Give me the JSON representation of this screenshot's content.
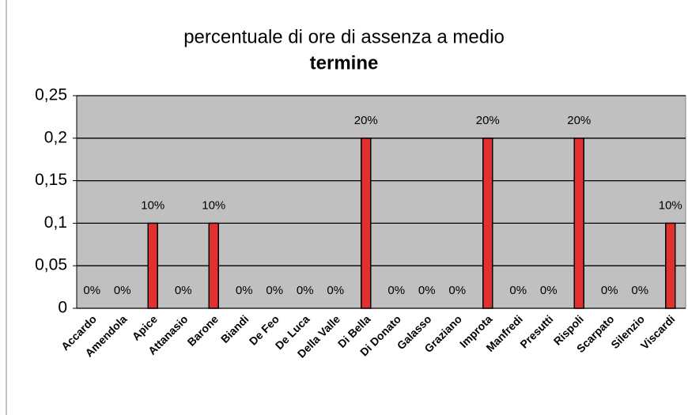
{
  "chart_data": {
    "type": "bar",
    "title": [
      "percentuale di ore di assenza a medio",
      "termine"
    ],
    "categories": [
      "Accardo",
      "Amendola",
      "Apice",
      "Attanasio",
      "Barone",
      "Biandi",
      "De Feo",
      "De Luca",
      "Della Valle",
      "Di Bella",
      "Di Donato",
      "Galasso",
      "Graziano",
      "Improta",
      "Manfredi",
      "Presutti",
      "Rispoli",
      "Scarpato",
      "Silenzio",
      "Viscardi"
    ],
    "values": [
      0,
      0,
      0.1,
      0,
      0.1,
      0,
      0,
      0,
      0,
      0.2,
      0,
      0,
      0,
      0.2,
      0,
      0,
      0.2,
      0,
      0,
      0.1
    ],
    "value_labels": [
      "0%",
      "0%",
      "10%",
      "0%",
      "10%",
      "0%",
      "0%",
      "0%",
      "0%",
      "20%",
      "0%",
      "0%",
      "0%",
      "20%",
      "0%",
      "0%",
      "20%",
      "0%",
      "0%",
      "10%"
    ],
    "color": "#e03030",
    "ylim": [
      0,
      0.25
    ],
    "yticks": [
      0,
      {
        "value": 0.05,
        "label": "0,05"
      },
      {
        "value": 0.1,
        "label": "0,1"
      },
      {
        "value": 0.15,
        "label": "0,15"
      },
      {
        "value": 0.2,
        "label": "0,2"
      },
      {
        "value": 0.25,
        "label": "0,25"
      }
    ],
    "grid": true
  }
}
